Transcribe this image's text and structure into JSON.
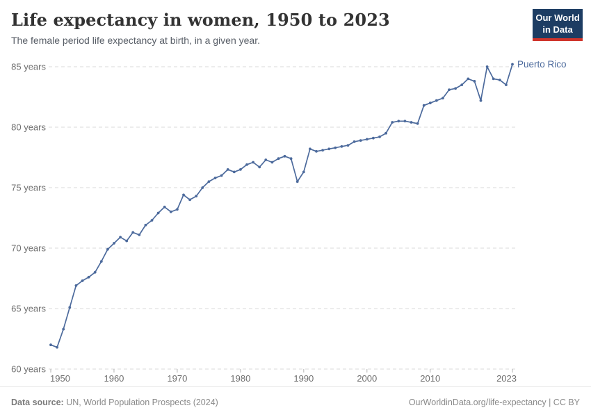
{
  "header": {
    "title": "Life expectancy in women, 1950 to 2023",
    "subtitle": "The female period life expectancy at birth, in a given year.",
    "logo": {
      "line1": "Our World",
      "line2": "in Data",
      "bg_color": "#1d3d63",
      "bar_color": "#cf342b"
    }
  },
  "chart_data": {
    "type": "line",
    "title": "Life expectancy in women, 1950 to 2023",
    "entity_label": "Puerto Rico",
    "line_color": "#4c6a9c",
    "grid": true,
    "grid_color": "#d9d9d9",
    "axis_text_color": "#6e6e6e",
    "xlim": [
      1950,
      2023
    ],
    "ylim": [
      60,
      85
    ],
    "x_ticks": [
      1950,
      1960,
      1970,
      1980,
      1990,
      2000,
      2010,
      2023
    ],
    "y_ticks": [
      60,
      65,
      70,
      75,
      80,
      85
    ],
    "y_tick_suffix": " years",
    "x": [
      1950,
      1951,
      1952,
      1953,
      1954,
      1955,
      1956,
      1957,
      1958,
      1959,
      1960,
      1961,
      1962,
      1963,
      1964,
      1965,
      1966,
      1967,
      1968,
      1969,
      1970,
      1971,
      1972,
      1973,
      1974,
      1975,
      1976,
      1977,
      1978,
      1979,
      1980,
      1981,
      1982,
      1983,
      1984,
      1985,
      1986,
      1987,
      1988,
      1989,
      1990,
      1991,
      1992,
      1993,
      1994,
      1995,
      1996,
      1997,
      1998,
      1999,
      2000,
      2001,
      2002,
      2003,
      2004,
      2005,
      2006,
      2007,
      2008,
      2009,
      2010,
      2011,
      2012,
      2013,
      2014,
      2015,
      2016,
      2017,
      2018,
      2019,
      2020,
      2021,
      2022,
      2023
    ],
    "series": [
      {
        "name": "Puerto Rico",
        "values": [
          62.0,
          61.8,
          63.3,
          65.1,
          66.9,
          67.3,
          67.6,
          68.0,
          68.9,
          69.9,
          70.4,
          70.9,
          70.6,
          71.3,
          71.1,
          71.9,
          72.3,
          72.9,
          73.4,
          73.0,
          73.2,
          74.4,
          74.0,
          74.3,
          75.0,
          75.5,
          75.8,
          76.0,
          76.5,
          76.3,
          76.5,
          76.9,
          77.1,
          76.7,
          77.3,
          77.1,
          77.4,
          77.6,
          77.4,
          75.5,
          76.3,
          78.2,
          78.0,
          78.1,
          78.2,
          78.3,
          78.4,
          78.5,
          78.8,
          78.9,
          79.0,
          79.1,
          79.2,
          79.5,
          80.4,
          80.5,
          80.5,
          80.4,
          80.3,
          81.8,
          82.0,
          82.2,
          82.4,
          83.1,
          83.2,
          83.5,
          84.0,
          83.8,
          82.2,
          85.0,
          84.0,
          83.9,
          83.5,
          85.2
        ]
      }
    ]
  },
  "footer": {
    "source_label": "Data source:",
    "source_text": " UN, World Population Prospects (2024)",
    "right_text": "OurWorldinData.org/life-expectancy | CC BY"
  }
}
